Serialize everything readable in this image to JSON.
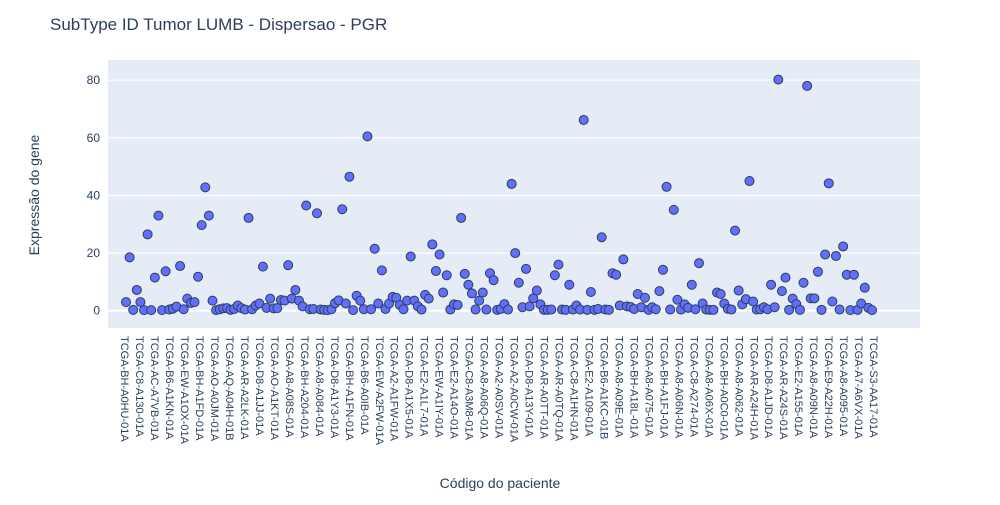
{
  "chart_data": {
    "type": "scatter",
    "title": "SubType ID Tumor LUMB - Dispersao - PGR",
    "xlabel": "Código do paciente",
    "ylabel": "Expressão do gene",
    "ylim": [
      -6,
      87
    ],
    "yticks": [
      0,
      20,
      40,
      60,
      80
    ],
    "grid": true,
    "legend": "none",
    "colors": {
      "plot_bg": "#e5ecf6",
      "grid": "#ffffff",
      "marker_fill": "#636efa",
      "marker_edge": "#2a3f5f",
      "text": "#2a3f5f"
    },
    "x_tick_labels": [
      "TCGA-BH-A0HU-01A",
      "TCGA-C8-A130-01A",
      "TCGA-AC-A7VB-01A",
      "TCGA-B6-A1KN-01A",
      "TCGA-EW-A1OX-01A",
      "TCGA-BH-A1FD-01A",
      "TCGA-AO-A0JM-01A",
      "TCGA-AQ-A04H-01B",
      "TCGA-AR-A2LK-01A",
      "TCGA-D8-A1JJ-01A",
      "TCGA-AO-A1KT-01A",
      "TCGA-A8-A08S-01A",
      "TCGA-BH-A204-01A",
      "TCGA-A8-A084-01A",
      "TCGA-D8-A1Y3-01A",
      "TCGA-BH-A1FN-01A",
      "TCGA-B6-A0IB-01A",
      "TCGA-EW-A2FW-01A",
      "TCGA-A2-A1FW-01A",
      "TCGA-D8-A1X5-01A",
      "TCGA-E2-A1L7-01A",
      "TCGA-EW-A1IY-01A",
      "TCGA-E2-A14O-01A",
      "TCGA-C8-A3M8-01A",
      "TCGA-A8-A06Q-01A",
      "TCGA-A2-A0SV-01A",
      "TCGA-A2-A0CW-01A",
      "TCGA-D8-A13Y-01A",
      "TCGA-AR-A0TT-01A",
      "TCGA-AR-A0TQ-01A",
      "TCGA-C8-A1HN-01A",
      "TCGA-E2-A109-01A",
      "TCGA-B6-A1KC-01B",
      "TCGA-A8-A09E-01A",
      "TCGA-BH-A18L-01A",
      "TCGA-A8-A075-01A",
      "TCGA-BH-A1FJ-01A",
      "TCGA-A8-A06N-01A",
      "TCGA-C8-A274-01A",
      "TCGA-A8-A06X-01A",
      "TCGA-BH-A0C0-01A",
      "TCGA-A8-A062-01A",
      "TCGA-AR-A24H-01A",
      "TCGA-D8-A1JD-01A",
      "TCGA-AR-A24S-01A",
      "TCGA-E2-A155-01A",
      "TCGA-A8-A09N-01A",
      "TCGA-E9-A22H-01A",
      "TCGA-A8-A095-01A",
      "TCGA-A7-A6VX-01A",
      "TCGA-S3-AA17-01A"
    ],
    "y": [
      3.0,
      18.5,
      0.3,
      7.2,
      3.0,
      0.2,
      26.5,
      0.2,
      11.5,
      33.0,
      0.2,
      13.7,
      0.4,
      0.7,
      1.4,
      15.5,
      0.5,
      4.2,
      2.7,
      3.0,
      11.8,
      29.7,
      42.8,
      33.0,
      3.5,
      0.2,
      0.5,
      0.8,
      0.9,
      0.3,
      0.6,
      1.8,
      0.9,
      0.4,
      32.2,
      0.5,
      1.8,
      2.5,
      15.3,
      1.0,
      4.2,
      0.8,
      0.9,
      3.7,
      3.5,
      15.8,
      4.2,
      7.2,
      3.5,
      1.5,
      36.5,
      0.5,
      0.6,
      33.8,
      0.4,
      0.3,
      0.2,
      0.5,
      2.6,
      3.6,
      35.2,
      2.5,
      46.5,
      0.2,
      5.2,
      3.5,
      0.5,
      60.5,
      0.5,
      21.5,
      2.5,
      14.0,
      0.6,
      2.5,
      4.8,
      4.5,
      2.0,
      0.5,
      3.5,
      18.8,
      3.5,
      1.5,
      0.4,
      5.5,
      4.2,
      23.0,
      13.8,
      19.5,
      6.3,
      12.3,
      0.4,
      2.2,
      2.0,
      32.2,
      12.8,
      9.0,
      6.0,
      0.4,
      3.5,
      6.3,
      0.4,
      13.0,
      10.6,
      0.3,
      0.6,
      2.3,
      0.4,
      44.0,
      20.0,
      9.7,
      1.2,
      14.5,
      1.5,
      4.3,
      7.0,
      2.2,
      0.3,
      0.3,
      0.4,
      12.3,
      16.0,
      0.4,
      0.3,
      9.0,
      0.4,
      1.8,
      0.4,
      66.2,
      0.3,
      6.5,
      0.3,
      0.6,
      25.5,
      0.4,
      0.3,
      13.0,
      12.5,
      1.8,
      17.8,
      1.5,
      1.3,
      0.6,
      5.8,
      1.2,
      4.5,
      0.3,
      1.2,
      0.5,
      6.8,
      14.2,
      43.0,
      0.4,
      35.0,
      3.8,
      0.4,
      2.2,
      1.0,
      9.0,
      0.5,
      16.5,
      2.5,
      0.4,
      0.3,
      0.3,
      6.3,
      5.8,
      2.5,
      0.7,
      0.4,
      27.8,
      7.0,
      2.2,
      4.0,
      45.0,
      3.2,
      0.4,
      0.5,
      1.2,
      0.5,
      9.0,
      1.2,
      80.2,
      6.8,
      11.5,
      0.3,
      4.2,
      2.3,
      0.3,
      9.7,
      78.0,
      4.3,
      4.3,
      13.5,
      0.3,
      19.5,
      44.2,
      3.2,
      19.0,
      0.4,
      22.3,
      12.5,
      0.2,
      12.5,
      0.3,
      2.5,
      8.0,
      1.0,
      0.2
    ]
  }
}
